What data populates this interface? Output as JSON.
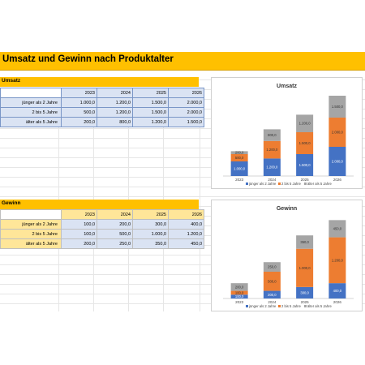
{
  "title": "Umsatz und Gewinn nach Produktalter",
  "umsatz_table": {
    "label": "Umsatz",
    "years": [
      "2023",
      "2024",
      "2025",
      "2026"
    ],
    "rows": [
      {
        "label": "jünger als 2 Jahre",
        "values": [
          "1.000,0",
          "1.200,0",
          "1.500,0",
          "2.000,0"
        ]
      },
      {
        "label": "2 bis 5 Jahre",
        "values": [
          "500,0",
          "1.200,0",
          "1.500,0",
          "2.000,0"
        ]
      },
      {
        "label": "älter als 5 Jahre",
        "values": [
          "200,0",
          "800,0",
          "1.200,0",
          "1.500,0"
        ]
      }
    ]
  },
  "gewinn_table": {
    "label": "Gewinn",
    "years": [
      "2023",
      "2024",
      "2025",
      "2026"
    ],
    "rows": [
      {
        "label": "jünger als 2 Jahre",
        "values": [
          "100,0",
          "200,0",
          "300,0",
          "400,0"
        ]
      },
      {
        "label": "2 bis 5 Jahre",
        "values": [
          "100,0",
          "500,0",
          "1.000,0",
          "1.200,0"
        ]
      },
      {
        "label": "älter als 5 Jahre",
        "values": [
          "200,0",
          "250,0",
          "350,0",
          "450,0"
        ]
      }
    ]
  },
  "colors": {
    "series1": "#4472c4",
    "series2": "#ed7d31",
    "series3": "#a5a5a5"
  },
  "chart_data": [
    {
      "type": "bar",
      "stacked": true,
      "title": "Umsatz",
      "categories": [
        "2023",
        "2024",
        "2025",
        "2026"
      ],
      "series": [
        {
          "name": "jünger als 2 Jahre",
          "values": [
            1000,
            1200,
            1500,
            2000
          ],
          "labels": [
            "1.000,0",
            "1.200,0",
            "1.500,0",
            "2.000,0"
          ]
        },
        {
          "name": "2 bis 5 Jahre",
          "values": [
            500,
            1200,
            1500,
            2000
          ],
          "labels": [
            "500,0",
            "1.200,0",
            "1.500,0",
            "2.000,0"
          ]
        },
        {
          "name": "älter als 5 Jahre",
          "values": [
            200,
            800,
            1200,
            1500
          ],
          "labels": [
            "200,0",
            "800,0",
            "1.200,0",
            "1.500,0"
          ]
        }
      ],
      "ylim": [
        0,
        5500
      ],
      "legend": "bottom"
    },
    {
      "type": "bar",
      "stacked": true,
      "title": "Gewinn",
      "categories": [
        "2023",
        "2024",
        "2025",
        "2026"
      ],
      "series": [
        {
          "name": "jünger als 2 Jahre",
          "values": [
            100,
            200,
            300,
            400
          ],
          "labels": [
            "100,0",
            "200,0",
            "300,0",
            "400,0"
          ]
        },
        {
          "name": "2 bis 5 Jahre",
          "values": [
            100,
            500,
            1000,
            1200
          ],
          "labels": [
            "100,0",
            "500,0",
            "1.000,0",
            "1.200,0"
          ]
        },
        {
          "name": "älter als 5 Jahre",
          "values": [
            200,
            250,
            350,
            450
          ],
          "labels": [
            "200,0",
            "250,0",
            "350,0",
            "450,0"
          ]
        }
      ],
      "ylim": [
        0,
        2100
      ],
      "legend": "bottom"
    }
  ]
}
